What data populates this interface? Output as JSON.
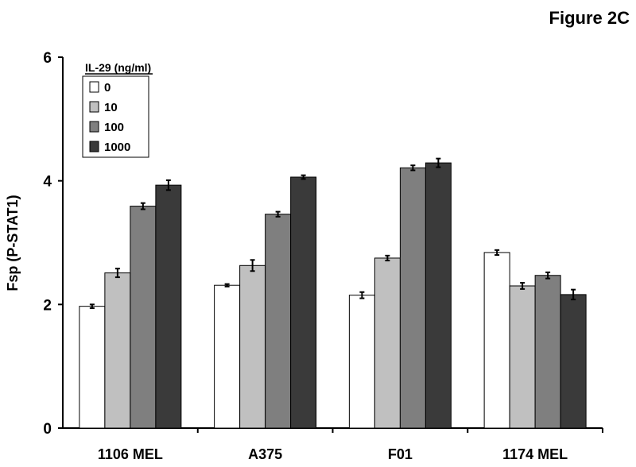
{
  "figure_label": "Figure 2C",
  "chart_data": {
    "type": "bar",
    "title": "",
    "xlabel": "",
    "ylabel": "Fsp (P-STAT1)",
    "ylim": [
      0,
      6
    ],
    "yticks": [
      "0",
      "2",
      "4",
      "6"
    ],
    "ytick_values": [
      0,
      2,
      4,
      6
    ],
    "categories": [
      "1106 MEL",
      "A375",
      "F01",
      "1174 MEL"
    ],
    "legend_title": "IL-29 (ng/ml)",
    "legend_position": "top-left",
    "grid": false,
    "series": [
      {
        "name": "0",
        "color": "#ffffff",
        "values": [
          1.97,
          2.31,
          2.15,
          2.84
        ],
        "errors": [
          0.03,
          0.02,
          0.05,
          0.04
        ]
      },
      {
        "name": "10",
        "color": "#c0c0c0",
        "values": [
          2.51,
          2.63,
          2.75,
          2.3
        ],
        "errors": [
          0.07,
          0.09,
          0.04,
          0.05
        ]
      },
      {
        "name": "100",
        "color": "#7f7f7f",
        "values": [
          3.59,
          3.46,
          4.21,
          2.47
        ],
        "errors": [
          0.05,
          0.04,
          0.04,
          0.05
        ]
      },
      {
        "name": "1000",
        "color": "#3a3a3a",
        "values": [
          3.93,
          4.06,
          4.29,
          2.16
        ],
        "errors": [
          0.08,
          0.03,
          0.07,
          0.08
        ]
      }
    ]
  }
}
